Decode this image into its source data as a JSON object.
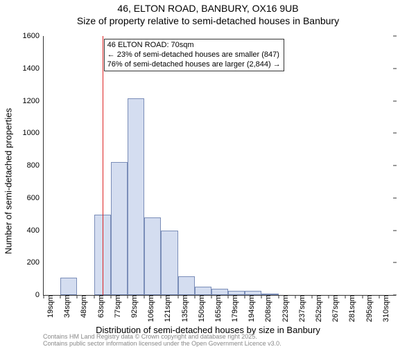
{
  "chart": {
    "type": "histogram",
    "title_line1": "46, ELTON ROAD, BANBURY, OX16 9UB",
    "title_line2": "Size of property relative to semi-detached houses in Banbury",
    "ylabel": "Number of semi-detached properties",
    "xlabel": "Distribution of semi-detached houses by size in Banbury",
    "ylim": [
      0,
      1600
    ],
    "yticks": [
      0,
      200,
      400,
      600,
      800,
      1000,
      1200,
      1400,
      1600
    ],
    "xtick_labels": [
      "19sqm",
      "34sqm",
      "48sqm",
      "63sqm",
      "77sqm",
      "92sqm",
      "106sqm",
      "121sqm",
      "135sqm",
      "150sqm",
      "165sqm",
      "179sqm",
      "194sqm",
      "208sqm",
      "223sqm",
      "237sqm",
      "252sqm",
      "267sqm",
      "281sqm",
      "295sqm",
      "310sqm"
    ],
    "bar_values": [
      0,
      105,
      0,
      495,
      820,
      1215,
      480,
      400,
      115,
      50,
      40,
      25,
      25,
      10,
      0,
      0,
      0,
      0,
      0,
      0,
      0
    ],
    "bar_fill": "#d4ddf0",
    "bar_border": "#7a8db8",
    "background_color": "#ffffff",
    "axis_color": "#333333",
    "reference_line": {
      "x_index": 3.5,
      "color": "#d22"
    },
    "annotation": {
      "line1": "46 ELTON ROAD: 70sqm",
      "line2": "← 23% of semi-detached houses are smaller (847)",
      "line3": "76% of semi-detached houses are larger (2,844) →"
    },
    "title_fontsize": 14,
    "label_fontsize": 13,
    "tick_fontsize": 11,
    "annotation_fontsize": 11
  },
  "footer": {
    "line1": "Contains HM Land Registry data © Crown copyright and database right 2025.",
    "line2": "Contains public sector information licensed under the Open Government Licence v3.0."
  }
}
